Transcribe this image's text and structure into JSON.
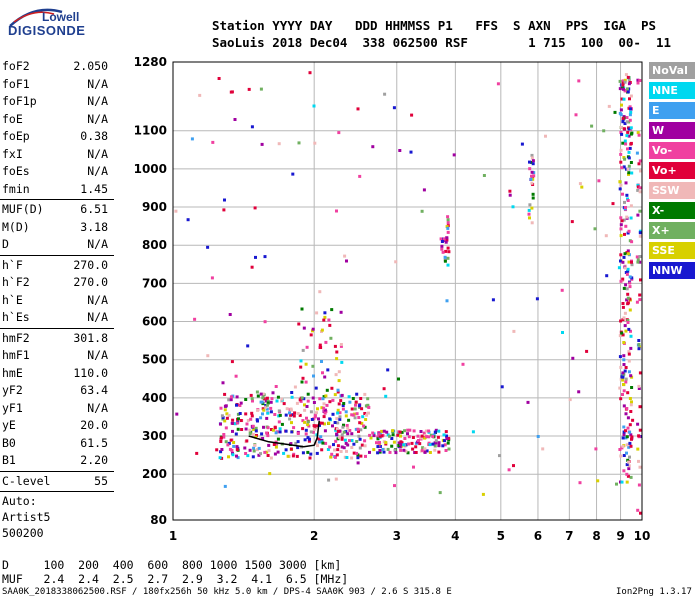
{
  "logo": {
    "line1": "Lowell",
    "line2": "DIGISONDE"
  },
  "header": {
    "line1": "Station YYYY DAY   DDD HHMMSS P1   FFS  S AXN  PPS  IGA  PS",
    "line2": "SaoLuis 2018 Dec04  338 062500 RSF        1 715  100  00-  11"
  },
  "params": {
    "group1": [
      {
        "name": "foF2",
        "value": "2.050"
      },
      {
        "name": "foF1",
        "value": "N/A"
      },
      {
        "name": "foF1p",
        "value": "N/A"
      },
      {
        "name": "foE",
        "value": "N/A"
      },
      {
        "name": "foEp",
        "value": "0.38"
      },
      {
        "name": "fxI",
        "value": "N/A"
      },
      {
        "name": "foEs",
        "value": "N/A"
      },
      {
        "name": "fmin",
        "value": "1.45"
      }
    ],
    "group2": [
      {
        "name": "MUF(D)",
        "value": "6.51"
      },
      {
        "name": "M(D)",
        "value": "3.18"
      },
      {
        "name": "D",
        "value": "N/A"
      }
    ],
    "group3": [
      {
        "name": "h`F",
        "value": "270.0"
      },
      {
        "name": "h`F2",
        "value": "270.0"
      },
      {
        "name": "h`E",
        "value": "N/A"
      },
      {
        "name": "h`Es",
        "value": "N/A"
      }
    ],
    "group4": [
      {
        "name": "hmF2",
        "value": "301.8"
      },
      {
        "name": "hmF1",
        "value": "N/A"
      },
      {
        "name": "hmE",
        "value": "110.0"
      },
      {
        "name": "yF2",
        "value": "63.4"
      },
      {
        "name": "yF1",
        "value": "N/A"
      },
      {
        "name": "yE",
        "value": "20.0"
      },
      {
        "name": "B0",
        "value": "61.5"
      },
      {
        "name": "B1",
        "value": "2.20"
      }
    ],
    "clevel": {
      "name": "C-level",
      "value": "55"
    },
    "auto": [
      "Auto:",
      "Artist5",
      "500200"
    ]
  },
  "legend": [
    {
      "label": "NoVal",
      "color": "#a0a0a0"
    },
    {
      "label": "NNE",
      "color": "#00d8f0"
    },
    {
      "label": "E",
      "color": "#3fa0f0"
    },
    {
      "label": "W",
      "color": "#a000a0"
    },
    {
      "label": "Vo-",
      "color": "#f040a0"
    },
    {
      "label": "Vo+",
      "color": "#e0003a"
    },
    {
      "label": "SSW",
      "color": "#f0b8b8"
    },
    {
      "label": "X-",
      "color": "#007a00"
    },
    {
      "label": "X+",
      "color": "#70b060"
    },
    {
      "label": "SSE",
      "color": "#d8d000"
    },
    {
      "label": "NNW",
      "color": "#1818d0"
    }
  ],
  "footer": {
    "d_line": "D     100  200  400  600  800 1000 1500 3000 [km]",
    "muf_line": "MUF   2.4  2.4  2.5  2.7  2.9  3.2  4.1  6.5 [MHz]",
    "source": "SAA0K_2018338062500.RSF / 180fx256h 50 kHz 5.0 km / DPS-4 SAA0K 903 / 2.6 S 315.8 E",
    "version": "Ion2Png 1.3.17"
  },
  "chart_data": {
    "type": "scatter",
    "title": "",
    "xlabel": "",
    "ylabel": "",
    "x_scale": "log",
    "xlim": [
      1,
      10
    ],
    "ylim": [
      80,
      1280
    ],
    "x_ticks": [
      1,
      2,
      3,
      4,
      5,
      6,
      7,
      8,
      9,
      10
    ],
    "y_ticks": [
      80,
      200,
      300,
      400,
      500,
      600,
      700,
      800,
      900,
      1000,
      1100,
      1280
    ],
    "grid": true,
    "legend_position": "right",
    "trace_curve": [
      [
        1.45,
        300
      ],
      [
        1.6,
        285
      ],
      [
        1.75,
        278
      ],
      [
        1.9,
        272
      ],
      [
        2.0,
        276
      ],
      [
        2.03,
        295
      ],
      [
        2.05,
        340
      ]
    ],
    "clusters": [
      {
        "x": [
          1.25,
          2.6
        ],
        "y": [
          245,
          420
        ],
        "n": 420
      },
      {
        "x": [
          2.6,
          3.85
        ],
        "y": [
          260,
          320
        ],
        "n": 150
      },
      {
        "x": [
          1.85,
          2.3
        ],
        "y": [
          420,
          640
        ],
        "n": 45
      },
      {
        "x": [
          3.7,
          3.85
        ],
        "y": [
          760,
          880
        ],
        "n": 25
      },
      {
        "x": [
          5.7,
          5.85
        ],
        "y": [
          860,
          1050
        ],
        "n": 25
      },
      {
        "x": [
          8.9,
          9.45
        ],
        "y": [
          180,
          1260
        ],
        "n": 260
      },
      {
        "x": [
          9.7,
          10.0
        ],
        "y": [
          85,
          1260
        ],
        "n": 90
      },
      {
        "x": [
          1.0,
          10.0
        ],
        "y": [
          120,
          1270
        ],
        "n": 140
      }
    ]
  }
}
